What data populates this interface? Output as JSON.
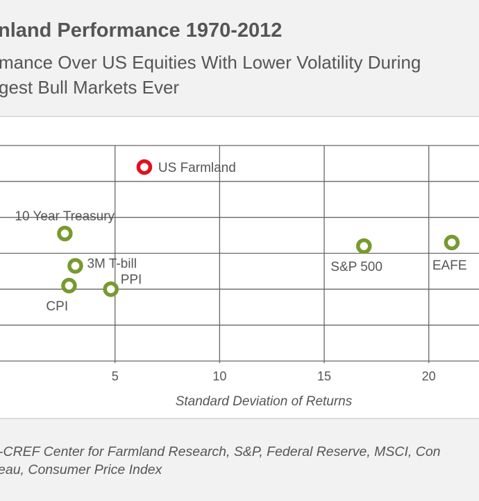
{
  "header": {
    "title": "nland Performance 1970-2012",
    "subtitle_line1": "mance Over US Equities With Lower Volatility During",
    "subtitle_line2": "gest Bull Markets Ever"
  },
  "footer": {
    "source_line1": "-CREF Center for Farmland Research, S&P, Federal Reserve, MSCI, Con",
    "source_line2": "eau, Consumer Price Index"
  },
  "chart_data": {
    "type": "scatter",
    "title": "",
    "xlabel": "Standard Deviation of Returns",
    "ylabel": "",
    "xlim": [
      -0.5,
      22.4
    ],
    "ylim": [
      0,
      12
    ],
    "xticks": [
      5,
      10,
      15,
      20
    ],
    "ygrid_step": 2,
    "grid": true,
    "colors": {
      "highlight": "#e2101e",
      "default": "#779a2e",
      "grid": "#666666",
      "text": "#555555"
    },
    "points": [
      {
        "label": "US Farmland",
        "x": 6.4,
        "y": 10.8,
        "highlight": true
      },
      {
        "label": "10 Year Treasury",
        "x": 2.6,
        "y": 7.1,
        "highlight": false
      },
      {
        "label": "3M T-bill",
        "x": 3.1,
        "y": 5.3,
        "highlight": false
      },
      {
        "label": "CPI",
        "x": 2.8,
        "y": 4.2,
        "highlight": false
      },
      {
        "label": "PPI",
        "x": 4.8,
        "y": 4.0,
        "highlight": false
      },
      {
        "label": "S&P 500",
        "x": 16.9,
        "y": 6.4,
        "highlight": false
      },
      {
        "label": "EAFE",
        "x": 21.1,
        "y": 6.6,
        "highlight": false
      }
    ]
  }
}
